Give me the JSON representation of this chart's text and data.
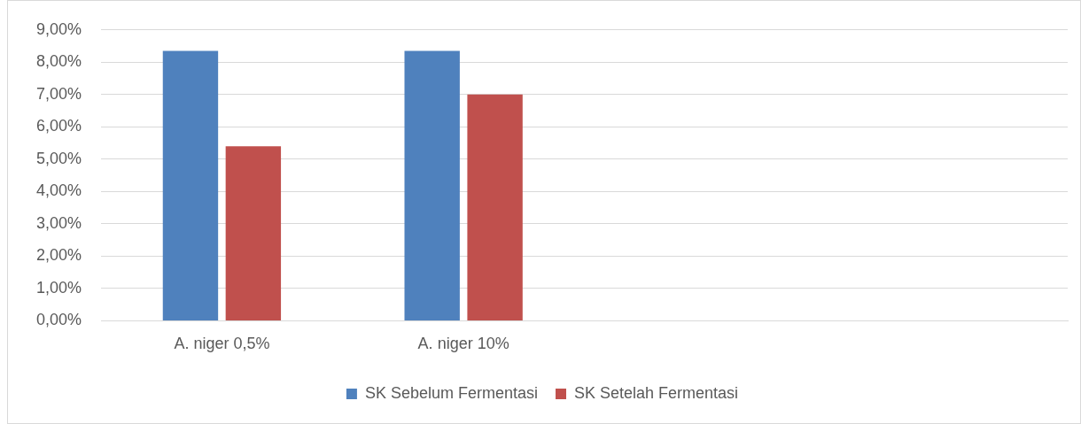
{
  "chart_data": {
    "type": "bar",
    "categories": [
      "A. niger 0,5%",
      "A. niger 10%",
      null,
      null
    ],
    "series": [
      {
        "name": "SK Sebelum Fermentasi",
        "color": "#4f81bd",
        "values": [
          8.35,
          8.35,
          null,
          null
        ]
      },
      {
        "name": "SK Setelah Fermentasi",
        "color": "#c0504d",
        "values": [
          5.4,
          7.0,
          null,
          null
        ]
      }
    ],
    "ylim": [
      0,
      9
    ],
    "yticks": [
      {
        "value": 0,
        "label": "0,00%"
      },
      {
        "value": 1,
        "label": "1,00%"
      },
      {
        "value": 2,
        "label": "2,00%"
      },
      {
        "value": 3,
        "label": "3,00%"
      },
      {
        "value": 4,
        "label": "4,00%"
      },
      {
        "value": 5,
        "label": "5,00%"
      },
      {
        "value": 6,
        "label": "6,00%"
      },
      {
        "value": 7,
        "label": "7,00%"
      },
      {
        "value": 8,
        "label": "8,00%"
      },
      {
        "value": 9,
        "label": "9,00%"
      }
    ],
    "grid": "y",
    "legend": "bottom"
  }
}
